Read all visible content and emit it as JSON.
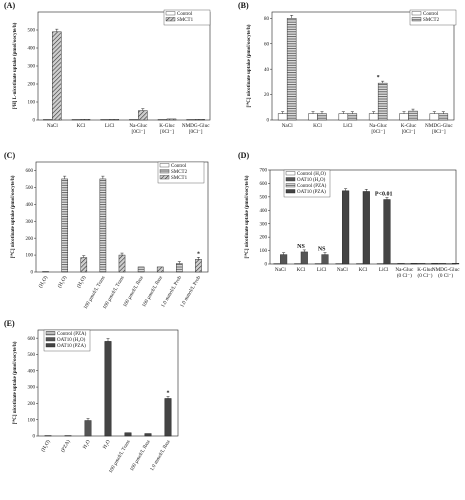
{
  "chart_data": [
    {
      "panel": "(A)",
      "type": "bar",
      "ylabel": "[³H] L-nicotinate uptake (pmol/oocyte/h)",
      "ylim": [
        0,
        600
      ],
      "yticks": [
        0,
        100,
        200,
        300,
        400,
        500
      ],
      "categories": [
        "NaCl",
        "KCl",
        "LiCl",
        "Na-Gluc\n[0Cl⁻]",
        "K-Gluc\n[0Cl⁻]",
        "NMDG-Gluc\n[0Cl⁻]"
      ],
      "series": [
        {
          "name": "Control",
          "values": [
            3,
            3,
            3,
            3,
            3,
            3
          ]
        },
        {
          "name": "SMCT1",
          "values": [
            490,
            4,
            4,
            52,
            6,
            4
          ]
        }
      ],
      "annotations": []
    },
    {
      "panel": "(B)",
      "type": "bar",
      "ylabel": "[¹⁴C] nicotinate uptake (pmol/oocyte/h)",
      "ylim": [
        0,
        85
      ],
      "yticks": [
        0,
        20,
        40,
        60,
        80
      ],
      "categories": [
        "NaCl",
        "KCl",
        "LiCl",
        "Na-Gluc\n[0Cl⁻]",
        "K-Gluc\n[0Cl⁻]",
        "NMDG-Gluc\n[0Cl⁻]"
      ],
      "series": [
        {
          "name": "Control",
          "values": [
            5,
            5,
            5,
            5,
            5,
            5
          ]
        },
        {
          "name": "SMCT2",
          "values": [
            80,
            5,
            5,
            29,
            7,
            5
          ]
        }
      ],
      "annotations": [
        {
          "text": "*",
          "category": 3
        }
      ]
    },
    {
      "panel": "(C)",
      "type": "bar",
      "ylabel": "[¹⁴C] nicotinate uptake (pmol/oocyte/h)",
      "ylim": [
        0,
        650
      ],
      "yticks": [
        0,
        100,
        200,
        300,
        400,
        500,
        600
      ],
      "categories": [
        "(H₂O)",
        "(H₂O)",
        "(H₂O)",
        "100 µmol/L Trans",
        "100 µmol/L Trans",
        "100 µmol/L Ibuz",
        "100 µmol/L Ibuz",
        "1.0 mmol/L Prob",
        "1.0 mmol/L Prob"
      ],
      "series": [
        {
          "name": "Control",
          "values": [
            3,
            null,
            null,
            null,
            null,
            null,
            null,
            null,
            null
          ]
        },
        {
          "name": "SMCT2",
          "values": [
            null,
            550,
            null,
            550,
            null,
            30,
            null,
            50,
            null
          ]
        },
        {
          "name": "SMCT1",
          "values": [
            null,
            null,
            85,
            null,
            100,
            null,
            30,
            null,
            75
          ]
        }
      ],
      "annotations": [
        {
          "text": "*",
          "category": 8
        }
      ]
    },
    {
      "panel": "(D)",
      "type": "bar",
      "ylabel": "[¹⁴C] nicotinate uptake (pmol/oocyte/h)",
      "ylim": [
        0,
        700
      ],
      "yticks": [
        0,
        100,
        200,
        300,
        400,
        500,
        600,
        700
      ],
      "categories": [
        "NaCl",
        "KCl",
        "LiCl",
        "NaCl",
        "KCl",
        "LiCl",
        "Na-Gluc\n(0 Cl⁻)",
        "K-Gluc\n(0 Cl⁻)",
        "NMDG-Gluc\n(0 Cl⁻)"
      ],
      "series": [
        {
          "name": "Control (H₂O)",
          "values": [
            3,
            3,
            3,
            null,
            null,
            null,
            3,
            3,
            3
          ]
        },
        {
          "name": "OAT10 (H₂O)",
          "values": [
            70,
            90,
            70,
            null,
            null,
            null,
            5,
            5,
            5
          ]
        },
        {
          "name": "Control (PZA)",
          "values": [
            null,
            null,
            null,
            3,
            3,
            3,
            3,
            3,
            3
          ]
        },
        {
          "name": "OAT10 (PZA)",
          "values": [
            null,
            null,
            null,
            545,
            540,
            480,
            5,
            5,
            5
          ]
        }
      ],
      "annotations": [
        {
          "text": "NS",
          "category": 1
        },
        {
          "text": "NS",
          "category": 2
        },
        {
          "text": "P<0.01",
          "category": 5
        }
      ]
    },
    {
      "panel": "(E)",
      "type": "bar",
      "ylabel": "[¹⁴C] nicotinate uptake (pmol/oocyte/h)",
      "ylim": [
        0,
        650
      ],
      "yticks": [
        0,
        100,
        200,
        300,
        400,
        500,
        600
      ],
      "categories": [
        "(H₂O)",
        "(PZA)",
        "H₂O",
        "H₂O",
        "100 µmol/L Trans",
        "100 µmol/L Ibuz",
        "1.0 mmol/L Ibuz"
      ],
      "series": [
        {
          "name": "Control (PZA)",
          "values": [
            3,
            3,
            null,
            null,
            null,
            null,
            null
          ]
        },
        {
          "name": "OAT10 (H₂O)",
          "values": [
            null,
            null,
            95,
            null,
            null,
            null,
            null
          ]
        },
        {
          "name": "OAT10 (PZA)",
          "values": [
            null,
            null,
            null,
            580,
            20,
            15,
            230
          ]
        }
      ],
      "annotations": [
        {
          "text": "*",
          "category": 6
        }
      ]
    }
  ],
  "styles": {
    "Control": {
      "fill": "#ffffff",
      "stroke": "#333333"
    },
    "SMCT1": {
      "fill": "#777777",
      "stroke": "#333333",
      "pattern": "hatch"
    },
    "SMCT2": {
      "fill": "#888888",
      "stroke": "#333333",
      "pattern": "hstripe"
    },
    "Control (H₂O)": {
      "fill": "#ffffff",
      "stroke": "#333333"
    },
    "OAT10 (H₂O)": {
      "fill": "#555555",
      "stroke": "#333333"
    },
    "Control (PZA)": {
      "fill": "#bbbbbb",
      "stroke": "#333333",
      "pattern": "hstripe"
    },
    "OAT10 (PZA)": {
      "fill": "#444444",
      "stroke": "#222222"
    }
  }
}
